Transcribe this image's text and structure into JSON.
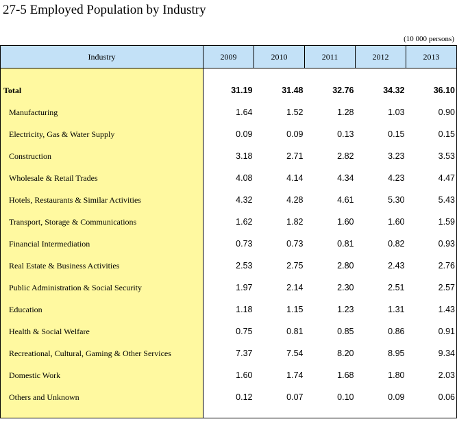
{
  "title": "27-5  Employed Population by Industry",
  "unit": "(10 000 persons)",
  "header": {
    "industry": "Industry",
    "years": [
      "2009",
      "2010",
      "2011",
      "2012",
      "2013"
    ]
  },
  "total": {
    "label": "Total",
    "values": [
      "31.19",
      "31.48",
      "32.76",
      "34.32",
      "36.10"
    ]
  },
  "rows": [
    {
      "label": "Manufacturing",
      "values": [
        "1.64",
        "1.52",
        "1.28",
        "1.03",
        "0.90"
      ]
    },
    {
      "label": "Electricity, Gas & Water Supply",
      "values": [
        "0.09",
        "0.09",
        "0.13",
        "0.15",
        "0.15"
      ]
    },
    {
      "label": "Construction",
      "values": [
        "3.18",
        "2.71",
        "2.82",
        "3.23",
        "3.53"
      ]
    },
    {
      "label": "Wholesale & Retail Trades",
      "values": [
        "4.08",
        "4.14",
        "4.34",
        "4.23",
        "4.47"
      ]
    },
    {
      "label": "Hotels, Restaurants & Similar Activities",
      "values": [
        "4.32",
        "4.28",
        "4.61",
        "5.30",
        "5.43"
      ]
    },
    {
      "label": "Transport, Storage & Communications",
      "values": [
        "1.62",
        "1.82",
        "1.60",
        "1.60",
        "1.59"
      ]
    },
    {
      "label": "Financial Intermediation",
      "values": [
        "0.73",
        "0.73",
        "0.81",
        "0.82",
        "0.93"
      ]
    },
    {
      "label": "Real Estate & Business Activities",
      "values": [
        "2.53",
        "2.75",
        "2.80",
        "2.43",
        "2.76"
      ]
    },
    {
      "label": "Public Administration & Social Security",
      "values": [
        "1.97",
        "2.14",
        "2.30",
        "2.51",
        "2.57"
      ]
    },
    {
      "label": "Education",
      "values": [
        "1.18",
        "1.15",
        "1.23",
        "1.31",
        "1.43"
      ]
    },
    {
      "label": "Health & Social Welfare",
      "values": [
        "0.75",
        "0.81",
        "0.85",
        "0.86",
        "0.91"
      ]
    },
    {
      "label": "Recreational, Cultural, Gaming & Other Services",
      "values": [
        "7.37",
        "7.54",
        "8.20",
        "8.95",
        "9.34"
      ]
    },
    {
      "label": "Domestic Work",
      "values": [
        "1.60",
        "1.74",
        "1.68",
        "1.80",
        "2.03"
      ]
    },
    {
      "label": "Others and Unknown",
      "values": [
        "0.12",
        "0.07",
        "0.10",
        "0.09",
        "0.06"
      ]
    }
  ],
  "colors": {
    "header_bg": "#c3e1f7",
    "label_column_bg": "#fff9a0"
  }
}
